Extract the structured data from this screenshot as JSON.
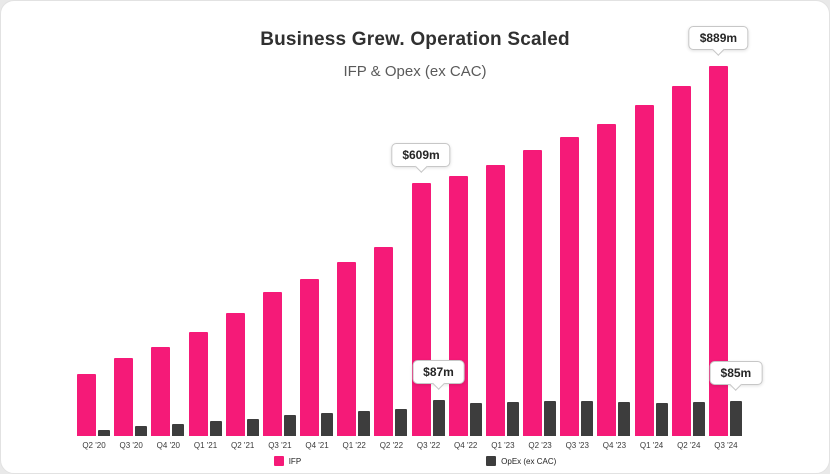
{
  "chart_data": {
    "type": "bar",
    "title": "Business Grew. Operation Scaled",
    "subtitle": "IFP & Opex (ex CAC)",
    "categories": [
      "Q2 '20",
      "Q3 '20",
      "Q4 '20",
      "Q1 '21",
      "Q2 '21",
      "Q3 '21",
      "Q4 '21",
      "Q1 '22",
      "Q2 '22",
      "Q3 '22",
      "Q4 '22",
      "Q1 '23",
      "Q2 '23",
      "Q3 '23",
      "Q4 '23",
      "Q1 '24",
      "Q2 '24",
      "Q3 '24"
    ],
    "series": [
      {
        "name": "IFP",
        "color": "#f51a78",
        "values": [
          150,
          188,
          213,
          250,
          295,
          345,
          378,
          418,
          455,
          609,
          625,
          652,
          687,
          719,
          750,
          795,
          840,
          889
        ]
      },
      {
        "name": "OpEx (ex CAC)",
        "color": "#3d3d3d",
        "values": [
          15,
          25,
          30,
          36,
          42,
          50,
          55,
          60,
          66,
          87,
          79,
          82,
          84,
          85,
          83,
          80,
          82,
          85
        ]
      }
    ],
    "unit": "$m",
    "ylim": [
      0,
      900
    ],
    "grid": false,
    "legend_position": "bottom",
    "annotations": [
      {
        "label": "$609m",
        "series": 0,
        "index": 9
      },
      {
        "label": "$889m",
        "series": 0,
        "index": 17
      },
      {
        "label": "$87m",
        "series": 1,
        "index": 9
      },
      {
        "label": "$85m",
        "series": 1,
        "index": 17
      }
    ]
  }
}
